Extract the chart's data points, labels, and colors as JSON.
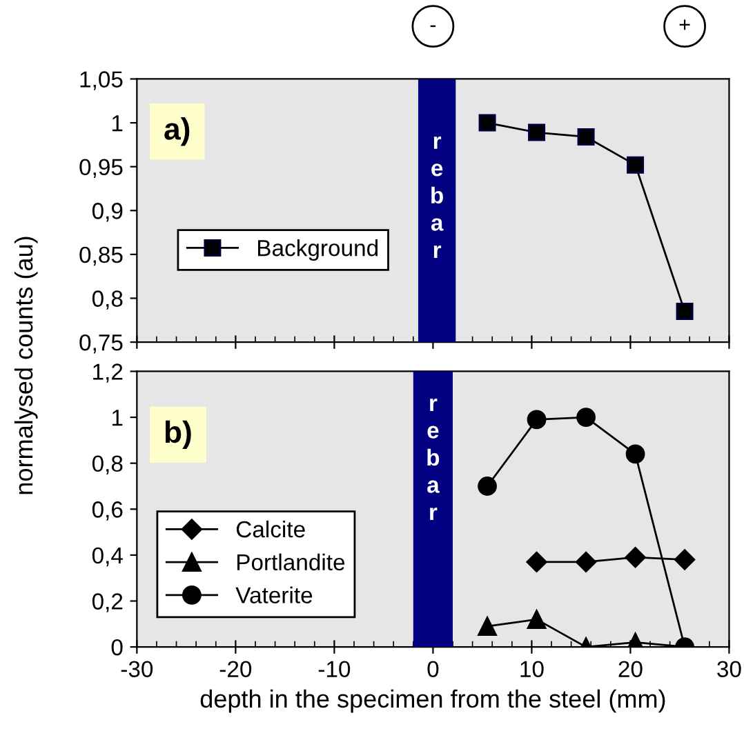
{
  "chart_data": [
    {
      "type": "line",
      "ylabel": "normalysed counts (au)",
      "xlim": [
        -30,
        30
      ],
      "xticks": [
        {
          "value": -30,
          "label": null
        },
        {
          "value": -20,
          "label": null
        },
        {
          "value": -10,
          "label": null
        },
        {
          "value": 0,
          "label": null
        },
        {
          "value": 10,
          "label": null
        },
        {
          "value": 20,
          "label": null
        },
        {
          "value": 30,
          "label": null
        }
      ],
      "ylim": [
        0.75,
        1.05
      ],
      "yticks": [
        {
          "value": 0.75,
          "label": "0,75"
        },
        {
          "value": 0.8,
          "label": "0,8"
        },
        {
          "value": 0.85,
          "label": "0,85"
        },
        {
          "value": 0.9,
          "label": "0,9"
        },
        {
          "value": 0.95,
          "label": "0,95"
        },
        1,
        {
          "value": 1.05,
          "label": "1,05"
        }
      ],
      "tick_labels": "y",
      "grid": false,
      "legend": "left",
      "line_style": "solid",
      "bands": [
        {
          "axis": "x",
          "from": -1.5,
          "to": 2.3,
          "label": "rebar",
          "color": "#000080"
        }
      ],
      "annotations": [
        "a)",
        "-",
        "+"
      ],
      "x": [
        5.5,
        10.5,
        15.5,
        20.5,
        25.5
      ],
      "series": [
        {
          "name": "Background",
          "color": "#000000",
          "marker": "square",
          "values": [
            1.0,
            0.989,
            0.984,
            0.952,
            0.785
          ]
        }
      ]
    },
    {
      "type": "line",
      "xlabel": "depth in the specimen from the steel (mm)",
      "xlim": [
        -30,
        30
      ],
      "xticks": [
        -30,
        -20,
        -10,
        0,
        10,
        20,
        30
      ],
      "ylim": [
        0,
        1.2
      ],
      "yticks": [
        0,
        {
          "value": 0.2,
          "label": "0,2"
        },
        {
          "value": 0.4,
          "label": "0,4"
        },
        {
          "value": 0.6,
          "label": "0,6"
        },
        {
          "value": 0.8,
          "label": "0,8"
        },
        1,
        {
          "value": 1.2,
          "label": "1,2"
        }
      ],
      "grid": false,
      "legend": "left",
      "line_style": "solid",
      "bands": [
        {
          "axis": "x",
          "from": -2,
          "to": 2,
          "label": "rebar",
          "color": "#000080"
        }
      ],
      "annotations": [
        "b)"
      ],
      "x": [
        5.5,
        10.5,
        15.5,
        20.5,
        25.5
      ],
      "series": [
        {
          "name": "Calcite",
          "color": "#000000",
          "marker": "diamond",
          "values": [
            null,
            0.37,
            0.37,
            0.39,
            0.38
          ]
        },
        {
          "name": "Portlandite",
          "color": "#000000",
          "marker": "triangle",
          "values": [
            0.09,
            0.12,
            0.0,
            0.02,
            0.0
          ]
        },
        {
          "name": "Vaterite",
          "color": "#000000",
          "marker": "circle",
          "values": [
            0.7,
            0.99,
            1.0,
            0.84,
            0.0
          ]
        }
      ]
    }
  ]
}
